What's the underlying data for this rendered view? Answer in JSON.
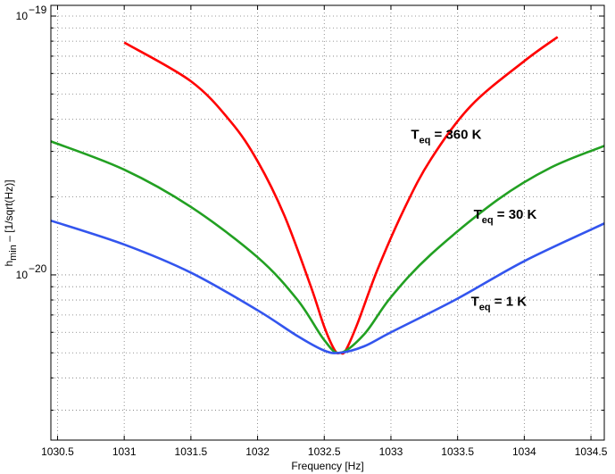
{
  "chart_data": {
    "type": "line",
    "title": "",
    "xlabel": "Frequency [Hz]",
    "ylabel": "h",
    "ylabel_sub": "min",
    "ylabel_tail": " – [1/sqrt(Hz)]",
    "xlim": [
      1030.45,
      1034.6
    ],
    "ylim": [
      2.3e-21,
      1.1e-19
    ],
    "yscale": "log",
    "grid": true,
    "x_ticks": [
      1030.5,
      1031,
      1031.5,
      1032,
      1032.5,
      1033,
      1033.5,
      1034,
      1034.5
    ],
    "x_tick_labels": [
      "1030.5",
      "1031",
      "1031.5",
      "1032",
      "1032.5",
      "1033",
      "1033.5",
      "1034",
      "1034.5"
    ],
    "y_ticks": [
      1e-20,
      1e-19
    ],
    "y_tick_labels": [
      {
        "base": "10",
        "exp": "−20"
      },
      {
        "base": "10",
        "exp": "−19"
      }
    ],
    "series": [
      {
        "color": "#ff0000",
        "label": {
          "main": "T",
          "sub": "eq",
          "rest": " = 360 K",
          "x": 1033.15,
          "y": 3.35e-20
        },
        "points": [
          [
            1031.0,
            7.9e-20
          ],
          [
            1031.5,
            5.6e-20
          ],
          [
            1031.8,
            3.9e-20
          ],
          [
            1032.0,
            2.75e-20
          ],
          [
            1032.2,
            1.7e-20
          ],
          [
            1032.4,
            9e-21
          ],
          [
            1032.5,
            6.3e-21
          ],
          [
            1032.58,
            5.1e-21
          ],
          [
            1032.62,
            5e-21
          ],
          [
            1032.66,
            5.1e-21
          ],
          [
            1032.75,
            6.5e-21
          ],
          [
            1032.9,
            1.05e-20
          ],
          [
            1033.1,
            1.8e-20
          ],
          [
            1033.3,
            2.8e-20
          ],
          [
            1033.6,
            4.5e-20
          ],
          [
            1034.0,
            6.7e-20
          ],
          [
            1034.25,
            8.3e-20
          ]
        ]
      },
      {
        "color": "#22a022",
        "label": {
          "main": "T",
          "sub": "eq",
          "rest": " = 30 K",
          "x": 1033.62,
          "y": 1.65e-20
        },
        "points": [
          [
            1030.45,
            3.28e-20
          ],
          [
            1031.0,
            2.55e-20
          ],
          [
            1031.5,
            1.83e-20
          ],
          [
            1032.0,
            1.17e-20
          ],
          [
            1032.3,
            8e-21
          ],
          [
            1032.5,
            5.6e-21
          ],
          [
            1032.62,
            5e-21
          ],
          [
            1032.8,
            5.9e-21
          ],
          [
            1033.0,
            8.2e-21
          ],
          [
            1033.3,
            1.2e-20
          ],
          [
            1033.8,
            1.95e-20
          ],
          [
            1034.2,
            2.6e-20
          ],
          [
            1034.6,
            3.15e-20
          ]
        ]
      },
      {
        "color": "#3355ee",
        "label": {
          "main": "T",
          "sub": "eq",
          "rest": " = 1 K",
          "x": 1033.6,
          "y": 7.6e-21
        },
        "points": [
          [
            1030.45,
            1.62e-20
          ],
          [
            1031.0,
            1.31e-20
          ],
          [
            1031.5,
            1.02e-20
          ],
          [
            1032.0,
            7.3e-21
          ],
          [
            1032.3,
            5.8e-21
          ],
          [
            1032.5,
            5.1e-21
          ],
          [
            1032.62,
            5e-21
          ],
          [
            1032.8,
            5.3e-21
          ],
          [
            1033.0,
            6e-21
          ],
          [
            1033.5,
            8.1e-21
          ],
          [
            1034.0,
            1.13e-20
          ],
          [
            1034.6,
            1.58e-20
          ]
        ]
      }
    ]
  }
}
